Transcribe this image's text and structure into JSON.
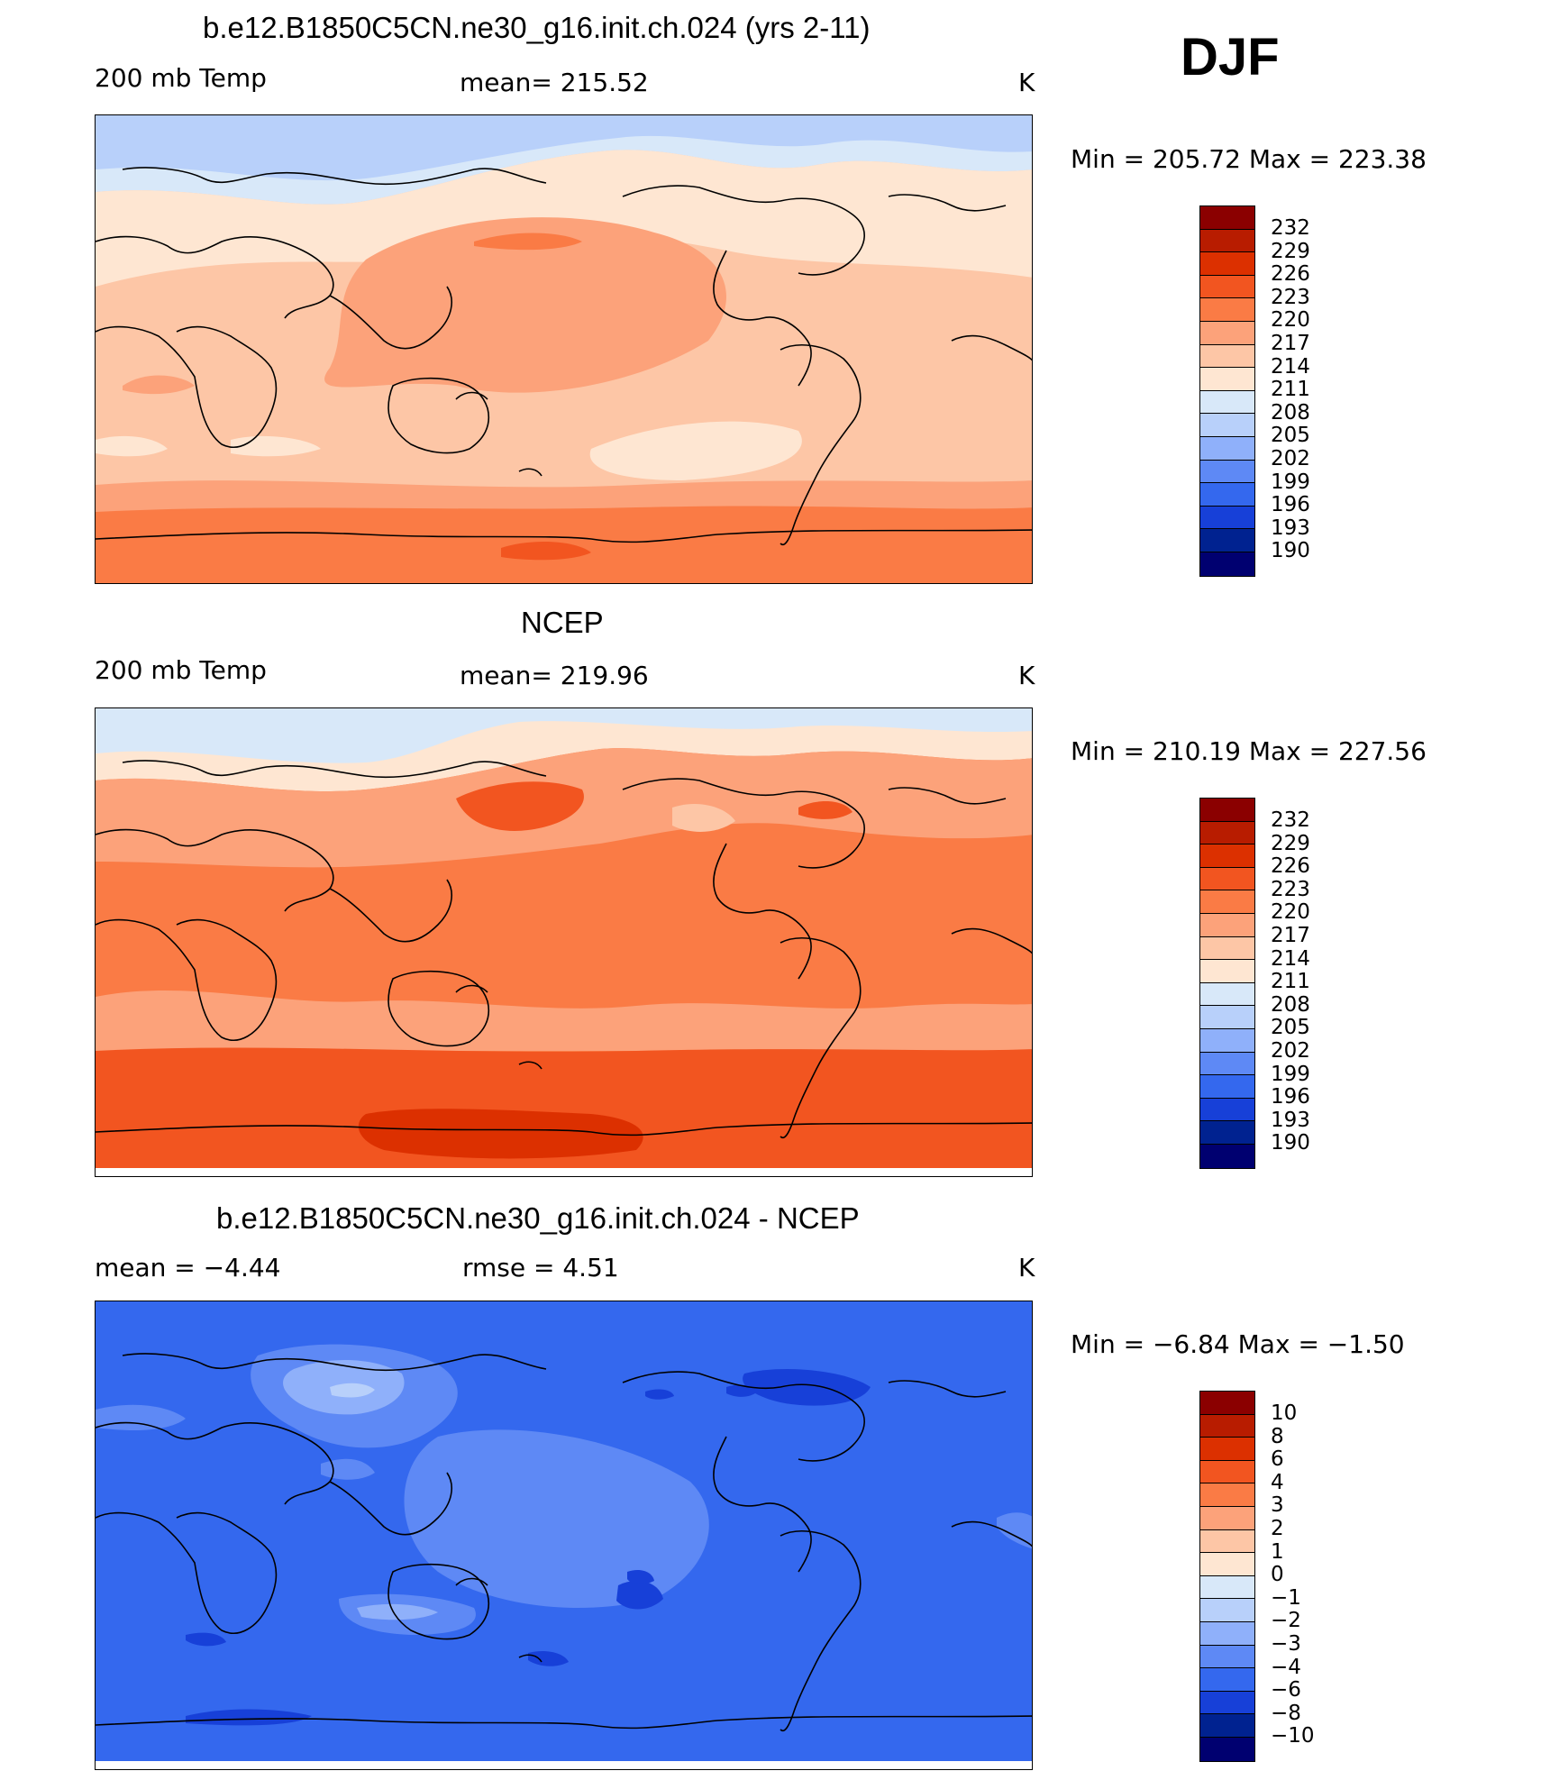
{
  "season": "DJF",
  "panels": [
    {
      "title": "b.e12.B1850C5CN.ne30_g16.init.ch.024 (yrs 2-11)",
      "left_label": "200 mb Temp",
      "center_label": "mean= 215.52",
      "units": "K",
      "minmax": "Min = 205.72 Max = 223.38",
      "colorbar": [
        "232",
        "229",
        "226",
        "223",
        "220",
        "217",
        "214",
        "211",
        "208",
        "205",
        "202",
        "199",
        "196",
        "193",
        "190"
      ]
    },
    {
      "title": "NCEP",
      "left_label": "200 mb Temp",
      "center_label": "mean= 219.96",
      "units": "K",
      "minmax": "Min = 210.19 Max = 227.56",
      "colorbar": [
        "232",
        "229",
        "226",
        "223",
        "220",
        "217",
        "214",
        "211",
        "208",
        "205",
        "202",
        "199",
        "196",
        "193",
        "190"
      ]
    },
    {
      "title": "b.e12.B1850C5CN.ne30_g16.init.ch.024 - NCEP",
      "left_label": "mean = −4.44",
      "center_label": "rmse = 4.51",
      "units": "K",
      "minmax": "Min = −6.84 Max = −1.50",
      "colorbar": [
        "10",
        "8",
        "6",
        "4",
        "3",
        "2",
        "1",
        "0",
        "−1",
        "−2",
        "−3",
        "−4",
        "−6",
        "−8",
        "−10"
      ]
    }
  ],
  "colors": {
    "scale": [
      "#8B0000",
      "#B81C00",
      "#DC3000",
      "#F25520",
      "#FA7B45",
      "#FCA27A",
      "#FDC6A6",
      "#FEE6D2",
      "#D8E8F9",
      "#B8D0FA",
      "#8FB0FA",
      "#5E89F5",
      "#3468EE",
      "#1740D8",
      "#002290",
      "#000070"
    ]
  }
}
